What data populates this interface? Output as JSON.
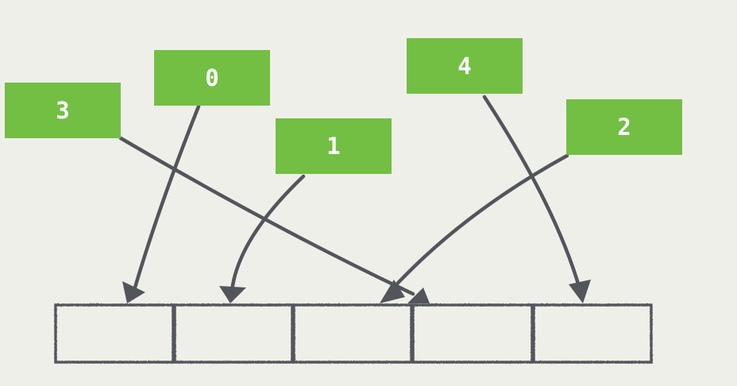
{
  "colors": {
    "background": "#efefe9",
    "box": "#72bf44",
    "label": "#ffffff",
    "stroke": "#52565b"
  },
  "boxes": [
    {
      "label": "3"
    },
    {
      "label": "0"
    },
    {
      "label": "1"
    },
    {
      "label": "4"
    },
    {
      "label": "2"
    }
  ],
  "slots": {
    "count": 5
  }
}
